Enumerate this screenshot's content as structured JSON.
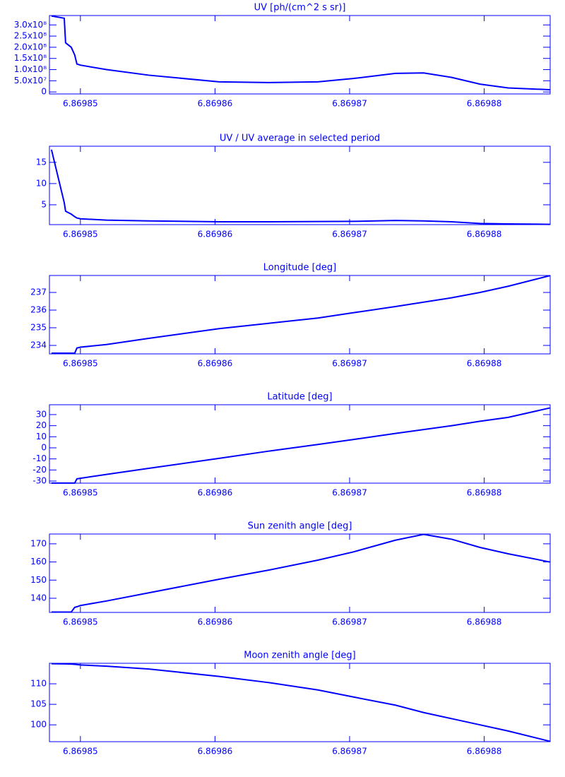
{
  "chart_data": [
    {
      "type": "line",
      "title": "UV [ph/(cm^2 s sr)]",
      "x": [
        6.86984785,
        6.8698488,
        6.8698489,
        6.86984932,
        6.86984958,
        6.86984974,
        6.86985,
        6.86985194,
        6.86985508,
        6.86986031,
        6.86986398,
        6.86986764,
        6.86987026,
        6.8698734,
        6.8698755,
        6.86987759,
        6.86987969,
        6.86988178,
        6.86988487
      ],
      "values": [
        340000000,
        330000000,
        220000000,
        200000000,
        165000000,
        125000000,
        120000000,
        100000000,
        75000000,
        45000000,
        42000000,
        45000000,
        60000000,
        83000000,
        85000000,
        65000000,
        35000000,
        18000000,
        10000000
      ],
      "color": "#0000ff",
      "xlim": [
        6.8698477,
        6.8698849
      ],
      "xticks": [
        6.86985,
        6.86986,
        6.86987,
        6.86988
      ],
      "ylim": [
        -9000000,
        342000000
      ],
      "yticks": [
        0,
        {
          "value": 50000000,
          "label": "5.0x10⁷"
        },
        {
          "value": 100000000,
          "label": "1.0x10⁸"
        },
        {
          "value": 150000000,
          "label": "1.5x10⁸"
        },
        {
          "value": 200000000,
          "label": "2.0x10⁸"
        },
        {
          "value": 250000000,
          "label": "2.5x10⁸"
        },
        {
          "value": 300000000,
          "label": "3.0x10⁸"
        }
      ]
    },
    {
      "type": "line",
      "title": "UV / UV average in selected period",
      "x": [
        6.86984785,
        6.8698488,
        6.8698489,
        6.86984932,
        6.86984958,
        6.86984974,
        6.86985,
        6.86985194,
        6.86985508,
        6.86986031,
        6.86986398,
        6.86986764,
        6.86987026,
        6.8698734,
        6.8698755,
        6.86987759,
        6.86987969,
        6.86988178,
        6.86988487
      ],
      "values": [
        18,
        5.5,
        3.5,
        2.8,
        2.2,
        1.9,
        1.7,
        1.4,
        1.2,
        1.0,
        1.0,
        1.05,
        1.1,
        1.3,
        1.2,
        1.0,
        0.6,
        0.5,
        0.4
      ],
      "color": "#0000ff",
      "xlim": [
        6.8698477,
        6.8698849
      ],
      "xticks": [
        6.86985,
        6.86986,
        6.86987,
        6.86988
      ],
      "ylim": [
        0.33,
        18.8
      ],
      "yticks": [
        5,
        10,
        15
      ]
    },
    {
      "type": "line",
      "title": "Longitude [deg]",
      "x": [
        6.86984785,
        6.8698488,
        6.8698489,
        6.86984932,
        6.86984958,
        6.86984974,
        6.86985,
        6.86985194,
        6.86985508,
        6.86986031,
        6.86986398,
        6.86986764,
        6.86987026,
        6.8698734,
        6.8698755,
        6.86987759,
        6.86987969,
        6.86988178,
        6.86988487
      ],
      "values": [
        233.56,
        233.56,
        233.56,
        233.56,
        233.56,
        233.85,
        233.9,
        234.05,
        234.4,
        234.95,
        235.25,
        235.55,
        235.85,
        236.2,
        236.45,
        236.7,
        237.0,
        237.35,
        237.95
      ],
      "color": "#0000ff",
      "xlim": [
        6.8698477,
        6.8698849
      ],
      "xticks": [
        6.86985,
        6.86986,
        6.86987,
        6.86988
      ],
      "ylim": [
        233.52,
        237.96
      ],
      "yticks": [
        234,
        235,
        236,
        237
      ]
    },
    {
      "type": "line",
      "title": "Latitude [deg]",
      "x": [
        6.86984785,
        6.8698488,
        6.8698489,
        6.86984932,
        6.86984958,
        6.86984974,
        6.86985,
        6.86985194,
        6.86985508,
        6.86986031,
        6.86986398,
        6.86986764,
        6.86987026,
        6.8698734,
        6.8698755,
        6.86987759,
        6.86987969,
        6.86988178,
        6.86988487
      ],
      "values": [
        -31.8,
        -31.8,
        -31.8,
        -31.8,
        -31.8,
        -28,
        -27.5,
        -24,
        -18.5,
        -9.5,
        -3,
        3,
        7.5,
        13,
        16.5,
        20,
        24,
        27.5,
        36
      ],
      "color": "#0000ff",
      "xlim": [
        6.8698477,
        6.8698849
      ],
      "xticks": [
        6.86985,
        6.86986,
        6.86987,
        6.86988
      ],
      "ylim": [
        -31.9,
        38.9
      ],
      "yticks": [
        -30,
        -20,
        -10,
        0,
        10,
        20,
        30
      ]
    },
    {
      "type": "line",
      "title": "Sun zenith angle [deg]",
      "x": [
        6.86984785,
        6.8698488,
        6.8698489,
        6.86984932,
        6.86984958,
        6.86984974,
        6.86985,
        6.86985194,
        6.86985508,
        6.86986031,
        6.86986398,
        6.86986764,
        6.86987026,
        6.8698734,
        6.8698755,
        6.86987759,
        6.86987969,
        6.86988178,
        6.86988487
      ],
      "values": [
        132.4,
        132.4,
        132.4,
        132.4,
        135,
        135.3,
        136,
        138.5,
        143,
        150.5,
        155.5,
        161,
        165.5,
        172,
        175.2,
        172.5,
        168,
        164.5,
        160
      ],
      "color": "#0000ff",
      "xlim": [
        6.8698477,
        6.8698849
      ],
      "xticks": [
        6.86985,
        6.86986,
        6.86987,
        6.86988
      ],
      "ylim": [
        132.2,
        175.4
      ],
      "yticks": [
        140,
        150,
        160,
        170
      ]
    },
    {
      "type": "line",
      "title": "Moon zenith angle [deg]",
      "x": [
        6.86984785,
        6.8698488,
        6.8698489,
        6.86984932,
        6.86984958,
        6.86984974,
        6.86985,
        6.86985194,
        6.86985508,
        6.86986031,
        6.86986398,
        6.86986764,
        6.86987026,
        6.8698734,
        6.8698755,
        6.86987759,
        6.86987969,
        6.86988178,
        6.86988487
      ],
      "values": [
        114.9,
        114.85,
        114.85,
        114.8,
        114.75,
        114.7,
        114.6,
        114.3,
        113.6,
        111.8,
        110.3,
        108.5,
        106.8,
        104.8,
        103,
        101.5,
        100,
        98.5,
        96
      ],
      "color": "#0000ff",
      "xlim": [
        6.8698477,
        6.8698849
      ],
      "xticks": [
        6.86985,
        6.86986,
        6.86987,
        6.86988
      ],
      "ylim": [
        95.9,
        115
      ],
      "yticks": [
        100,
        105,
        110
      ]
    }
  ]
}
